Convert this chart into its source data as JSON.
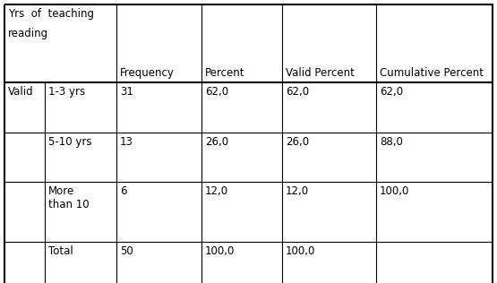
{
  "header_line1": "Yrs  of  teaching",
  "header_line2": "reading",
  "col_headers": [
    "Frequency",
    "Percent",
    "Valid Percent",
    "Cumulative Percent"
  ],
  "rows": [
    [
      "Valid",
      "1-3 yrs",
      "31",
      "62,0",
      "62,0",
      "62,0"
    ],
    [
      "",
      "5-10 yrs",
      "13",
      "26,0",
      "26,0",
      "88,0"
    ],
    [
      "",
      "More\nthan 10",
      "6",
      "12,0",
      "12,0",
      "100,0"
    ],
    [
      "",
      "Total",
      "50",
      "100,0",
      "100,0",
      ""
    ]
  ],
  "background_color": "#ffffff",
  "border_color": "#000000",
  "font_size": 8.5
}
